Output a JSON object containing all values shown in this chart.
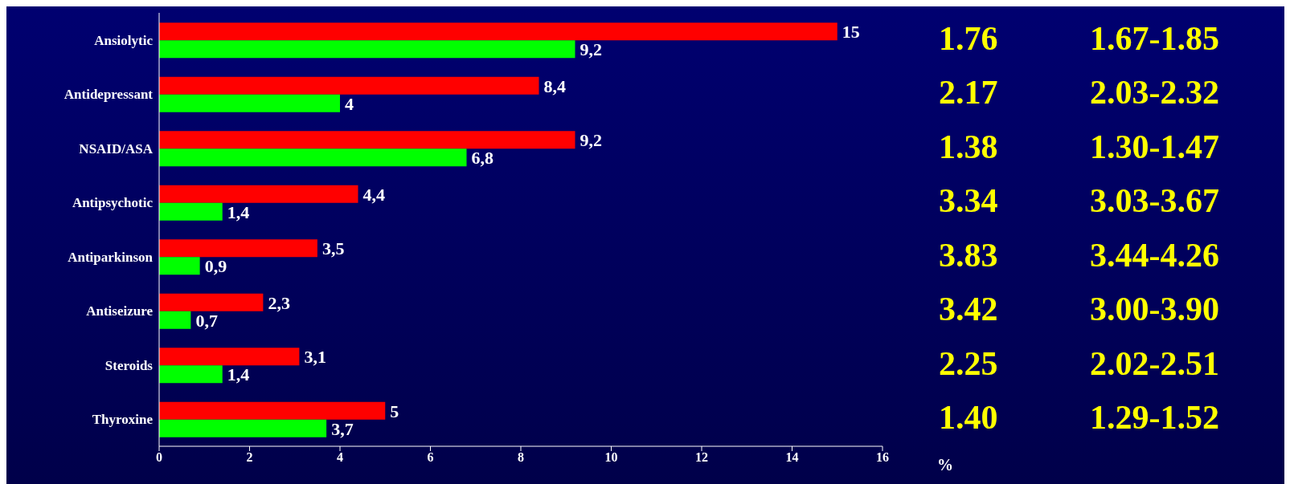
{
  "chart_data": {
    "type": "bar",
    "orientation": "horizontal",
    "xlabel": "%",
    "categories": [
      "Ansiolytic",
      "Antidepressant",
      "NSAID/ASA",
      "Antipsychotic",
      "Antiparkinson",
      "Antiseizure",
      "Steroids",
      "Thyroxine"
    ],
    "series": [
      {
        "color": "#ff0000",
        "values": [
          15,
          8.4,
          9.2,
          4.4,
          3.5,
          2.3,
          3.1,
          5
        ],
        "value_labels": [
          "15",
          "8,4",
          "9,2",
          "4,4",
          "3,5",
          "2,3",
          "3,1",
          "5"
        ]
      },
      {
        "color": "#00ff00",
        "values": [
          9.2,
          4,
          6.8,
          1.4,
          0.9,
          0.7,
          1.4,
          3.7
        ],
        "value_labels": [
          "9,2",
          "4",
          "6,8",
          "1,4",
          "0,9",
          "0,7",
          "1,4",
          "3,7"
        ]
      }
    ],
    "xlim": [
      0,
      16
    ],
    "xticks": [
      0,
      2,
      4,
      6,
      8,
      10,
      12,
      14,
      16
    ],
    "annotations": [
      "1.76",
      "1.67-1.85",
      "2.17",
      "2.03-2.32",
      "1.38",
      "1.30-1.47",
      "3.34",
      "3.03-3.67",
      "3.83",
      "3.44-4.26",
      "3.42",
      "3.00-3.90",
      "2.25",
      "2.02-2.51",
      "1.40",
      "1.29-1.52"
    ]
  }
}
